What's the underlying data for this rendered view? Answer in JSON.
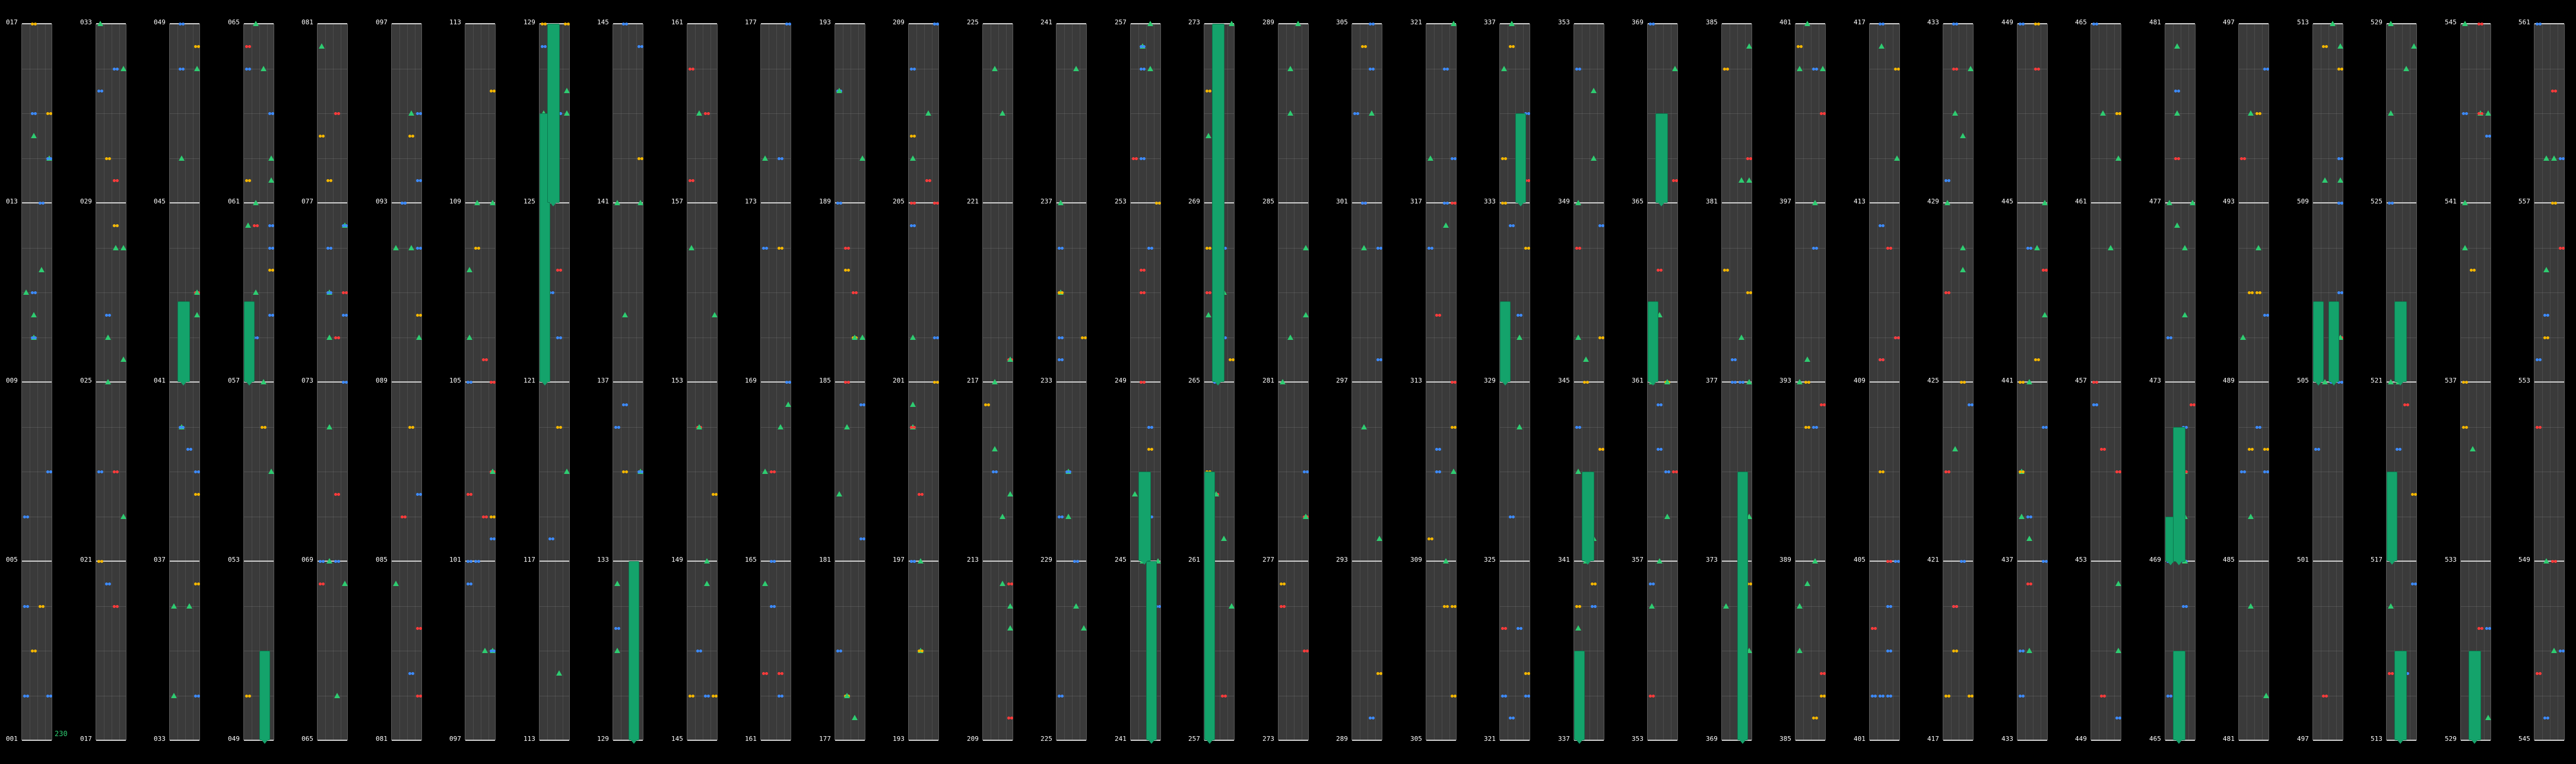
{
  "chart": {
    "lanes": 4,
    "colors": {
      "tap": "#2ecc71",
      "blue": "#3d8bfd",
      "yellow": "#f5b700",
      "red": "#ff3b3b",
      "pink": "#ff6b8a",
      "hold": "#14a36b",
      "hold_border": "#0c7a4f"
    },
    "combo": "230",
    "columns": [
      {
        "labels": [
          "017",
          "013",
          "009",
          "005",
          "001"
        ]
      },
      {
        "labels": [
          "033",
          "029",
          "025",
          "021",
          "017"
        ]
      },
      {
        "labels": [
          "049",
          "045",
          "041",
          "037",
          "033"
        ]
      },
      {
        "labels": [
          "065",
          "061",
          "057",
          "053",
          "049"
        ]
      },
      {
        "labels": [
          "081",
          "077",
          "073",
          "069",
          "065"
        ]
      },
      {
        "labels": [
          "097",
          "093",
          "089",
          "085",
          "081"
        ]
      },
      {
        "labels": [
          "113",
          "109",
          "105",
          "101",
          "097"
        ]
      },
      {
        "labels": [
          "129",
          "125",
          "121",
          "117",
          "113"
        ]
      },
      {
        "labels": [
          "145",
          "141",
          "137",
          "133",
          "129"
        ]
      },
      {
        "labels": [
          "161",
          "157",
          "153",
          "149",
          "145"
        ]
      },
      {
        "labels": [
          "177",
          "173",
          "169",
          "165",
          "161"
        ]
      },
      {
        "labels": [
          "193",
          "189",
          "185",
          "181",
          "177"
        ]
      },
      {
        "labels": [
          "209",
          "205",
          "201",
          "197",
          "193"
        ]
      },
      {
        "labels": [
          "225",
          "221",
          "217",
          "213",
          "209"
        ]
      },
      {
        "labels": [
          "241",
          "237",
          "233",
          "229",
          "225"
        ]
      },
      {
        "labels": [
          "257",
          "253",
          "249",
          "245",
          "241"
        ]
      },
      {
        "labels": [
          "273",
          "269",
          "265",
          "261",
          "257"
        ]
      },
      {
        "labels": [
          "289",
          "285",
          "281",
          "277",
          "273"
        ]
      },
      {
        "labels": [
          "305",
          "301",
          "297",
          "293",
          "289"
        ]
      },
      {
        "labels": [
          "321",
          "317",
          "313",
          "309",
          "305"
        ]
      },
      {
        "labels": [
          "337",
          "333",
          "329",
          "325",
          "321"
        ]
      },
      {
        "labels": [
          "353",
          "349",
          "345",
          "341",
          "337"
        ]
      },
      {
        "labels": [
          "369",
          "365",
          "361",
          "357",
          "353"
        ]
      },
      {
        "labels": [
          "385",
          "381",
          "377",
          "373",
          "369"
        ]
      },
      {
        "labels": [
          "401",
          "397",
          "393",
          "389",
          "385"
        ]
      },
      {
        "labels": [
          "417",
          "413",
          "409",
          "405",
          "401"
        ]
      },
      {
        "labels": [
          "433",
          "429",
          "425",
          "421",
          "417"
        ]
      },
      {
        "labels": [
          "449",
          "445",
          "441",
          "437",
          "433"
        ]
      },
      {
        "labels": [
          "465",
          "461",
          "457",
          "453",
          "449"
        ]
      },
      {
        "labels": [
          "481",
          "477",
          "473",
          "469",
          "465"
        ]
      },
      {
        "labels": [
          "497",
          "493",
          "489",
          "485",
          "481"
        ]
      },
      {
        "labels": [
          "513",
          "509",
          "505",
          "501",
          "497"
        ]
      },
      {
        "labels": [
          "529",
          "525",
          "521",
          "517",
          "513"
        ]
      },
      {
        "labels": [
          "545",
          "541",
          "537",
          "533",
          "529"
        ]
      },
      {
        "labels": [
          "561",
          "557",
          "553",
          "549",
          "545"
        ]
      }
    ],
    "holds": [
      {
        "col": 2,
        "lane": 1,
        "from": 1.55,
        "to": 2.0
      },
      {
        "col": 3,
        "lane": 0,
        "from": 1.55,
        "to": 2.0
      },
      {
        "col": 3,
        "lane": 2,
        "from": 3.5,
        "to": 4.0
      },
      {
        "col": 7,
        "lane": 0,
        "from": 0.5,
        "to": 2.0
      },
      {
        "col": 7,
        "lane": 1,
        "from": 0.0,
        "to": 1.0
      },
      {
        "col": 8,
        "lane": 2,
        "from": 3.0,
        "to": 4.0
      },
      {
        "col": 15,
        "lane": 1,
        "from": 2.5,
        "to": 3.0
      },
      {
        "col": 15,
        "lane": 2,
        "from": 3.0,
        "to": 4.0
      },
      {
        "col": 16,
        "lane": 0,
        "from": 2.5,
        "to": 4.0
      },
      {
        "col": 16,
        "lane": 1,
        "from": 0.0,
        "to": 2.0
      },
      {
        "col": 20,
        "lane": 0,
        "from": 1.55,
        "to": 2.0
      },
      {
        "col": 20,
        "lane": 2,
        "from": 0.5,
        "to": 1.0
      },
      {
        "col": 21,
        "lane": 0,
        "from": 3.5,
        "to": 4.0
      },
      {
        "col": 21,
        "lane": 1,
        "from": 2.5,
        "to": 3.0
      },
      {
        "col": 22,
        "lane": 0,
        "from": 1.55,
        "to": 2.0
      },
      {
        "col": 22,
        "lane": 1,
        "from": 0.5,
        "to": 1.0
      },
      {
        "col": 23,
        "lane": 2,
        "from": 2.5,
        "to": 4.0
      },
      {
        "col": 29,
        "lane": 0,
        "from": 2.75,
        "to": 3.0
      },
      {
        "col": 29,
        "lane": 1,
        "from": 2.25,
        "to": 3.0
      },
      {
        "col": 29,
        "lane": 1,
        "from": 3.5,
        "to": 4.0
      },
      {
        "col": 31,
        "lane": 0,
        "from": 1.55,
        "to": 2.0
      },
      {
        "col": 31,
        "lane": 2,
        "from": 1.55,
        "to": 2.0
      },
      {
        "col": 32,
        "lane": 0,
        "from": 2.5,
        "to": 3.0
      },
      {
        "col": 32,
        "lane": 1,
        "from": 1.55,
        "to": 2.0
      },
      {
        "col": 32,
        "lane": 1,
        "from": 3.5,
        "to": 4.0
      },
      {
        "col": 33,
        "lane": 1,
        "from": 3.5,
        "to": 4.0
      }
    ]
  }
}
